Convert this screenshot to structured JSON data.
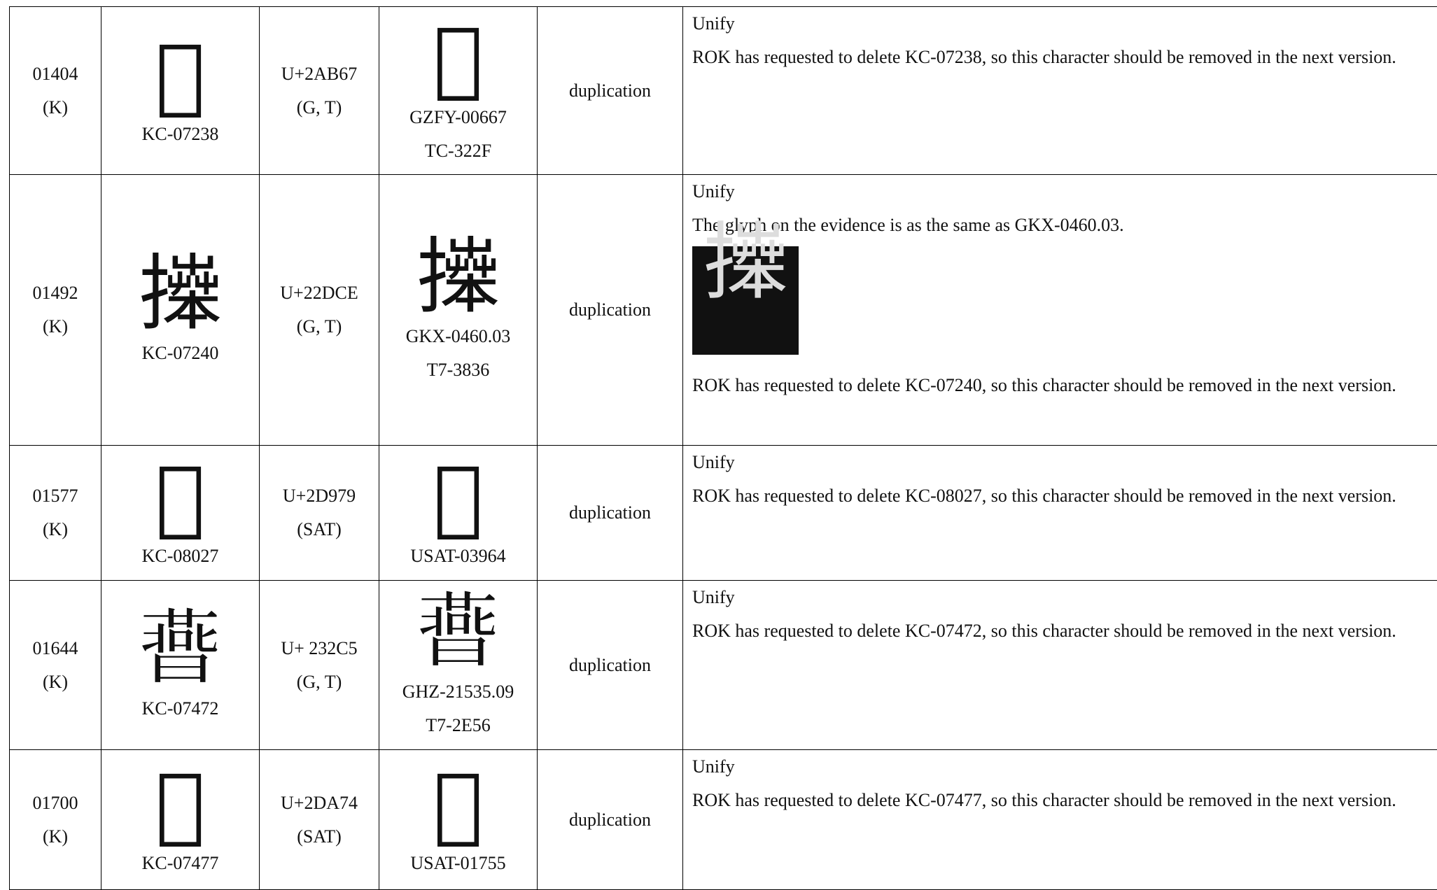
{
  "table": {
    "rows": [
      {
        "sn": "01404",
        "status": "(K)",
        "k_glyph": "𪭧",
        "k_code": "KC-07238",
        "code_point": "U+2AB67",
        "sources": "(G, T)",
        "u_glyph": "𪭧",
        "u_codes": [
          "GZFY-00667",
          "TC-322F"
        ],
        "type": "duplication",
        "comment": [
          "Unify",
          "ROK has requested to delete KC-07238, so this character should be removed in the next version."
        ]
      },
      {
        "sn": "01492",
        "status": "(K)",
        "k_glyph": "𢷎",
        "k_code": "KC-07240",
        "code_point": "U+22DCE",
        "sources": "(G, T)",
        "u_glyph": "𢷎",
        "u_codes": [
          "GKX-0460.03",
          "T7-3836"
        ],
        "type": "duplication",
        "comment": [
          "Unify",
          "The glyph on the evidence is as the same as GKX-0460.03."
        ],
        "evidence_glyph": "𢷎",
        "comment_after": [
          "ROK has requested to delete KC-07240, so this character should be removed in the next version."
        ]
      },
      {
        "sn": "01577",
        "status": "(K)",
        "k_glyph": "𭥹",
        "k_code": "KC-08027",
        "code_point": "U+2D979",
        "sources": "(SAT)",
        "u_glyph": "𭥹",
        "u_codes": [
          "USAT-03964"
        ],
        "type": "duplication",
        "comment": [
          "Unify",
          "ROK has requested to delete KC-08027, so this character should be removed in the next version."
        ]
      },
      {
        "sn": "01644",
        "status": "(K)",
        "k_glyph": "𣋅",
        "k_code": "KC-07472",
        "code_point": "U+ 232C5",
        "sources": "(G, T)",
        "u_glyph": "𣋅",
        "u_codes": [
          "GHZ-21535.09",
          "T7-2E56"
        ],
        "type": "duplication",
        "comment": [
          "Unify",
          "ROK has requested to delete KC-07472, so this character should be removed in the next version."
        ]
      },
      {
        "sn": "01700",
        "status": "(K)",
        "k_glyph": "𭩴",
        "k_code": "KC-07477",
        "code_point": "U+2DA74",
        "sources": "(SAT)",
        "u_glyph": "𭩴",
        "u_codes": [
          "USAT-01755"
        ],
        "type": "duplication",
        "comment": [
          "Unify",
          "ROK has requested to delete KC-07477, so this character should be removed in the next version."
        ]
      }
    ]
  }
}
